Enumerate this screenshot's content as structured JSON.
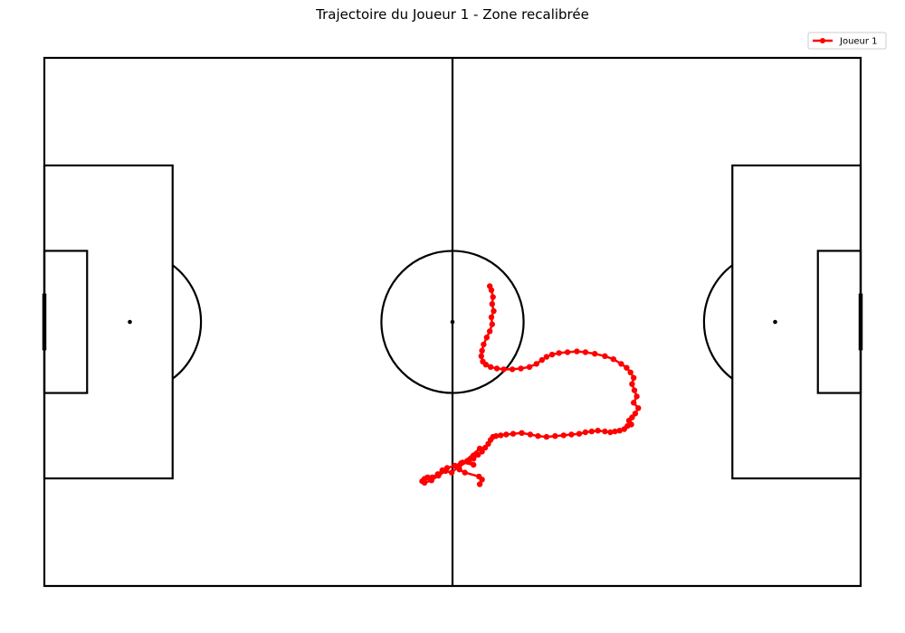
{
  "chart_data": {
    "type": "line",
    "title": "Trajectoire du Joueur 1 - Zone recalibrée",
    "xlabel": "",
    "ylabel": "",
    "xlim": [
      0,
      105
    ],
    "ylim": [
      0,
      68
    ],
    "grid": false,
    "axes_visible": false,
    "legend": {
      "position": "top-right",
      "entries": [
        "Joueur 1"
      ]
    },
    "background": "pitch-outline",
    "series": [
      {
        "name": "Joueur 1",
        "color": "#ff0000",
        "marker": "circle",
        "x": [
          57.3,
          57.5,
          57.7,
          57.6,
          57.8,
          57.5,
          57.6,
          57.3,
          56.9,
          56.5,
          56.3,
          56.2,
          56.4,
          56.8,
          57.4,
          58.2,
          59.1,
          60.2,
          61.3,
          62.4,
          63.3,
          64.0,
          64.6,
          65.3,
          66.2,
          67.3,
          68.5,
          69.6,
          70.8,
          72.1,
          73.2,
          74.2,
          74.9,
          75.4,
          75.8,
          75.6,
          75.9,
          76.2,
          75.8,
          76.4,
          76.0,
          75.6,
          75.2,
          75.5,
          75.0,
          74.6,
          74.0,
          73.4,
          72.8,
          72.1,
          71.2,
          70.4,
          69.6,
          68.8,
          67.8,
          66.8,
          65.7,
          64.6,
          63.5,
          62.5,
          61.4,
          60.3,
          59.4,
          58.7,
          58.1,
          57.7,
          57.4,
          57.1,
          56.7,
          56.3,
          55.8,
          55.2,
          54.4,
          53.6,
          52.8,
          51.8,
          51.2,
          50.6,
          49.9,
          49.3,
          48.9,
          48.6,
          48.9,
          49.8,
          50.7,
          51.6,
          52.4,
          56.0,
          55.2,
          54.6,
          55.2,
          53.8,
          53.4,
          54.1,
          55.9,
          56.3,
          56.0
        ],
        "y": [
          38.6,
          38.1,
          37.2,
          36.3,
          35.4,
          34.6,
          33.7,
          32.8,
          32.0,
          31.1,
          30.3,
          29.6,
          28.9,
          28.5,
          28.2,
          28.0,
          27.9,
          27.9,
          28.0,
          28.2,
          28.6,
          29.1,
          29.5,
          29.8,
          30.0,
          30.1,
          30.2,
          30.1,
          29.9,
          29.6,
          29.2,
          28.6,
          28.1,
          27.5,
          26.8,
          26.0,
          25.2,
          24.4,
          23.6,
          22.9,
          22.2,
          21.7,
          21.3,
          20.8,
          20.6,
          20.2,
          20.0,
          19.9,
          19.8,
          19.9,
          20.0,
          19.9,
          19.8,
          19.6,
          19.5,
          19.4,
          19.3,
          19.2,
          19.3,
          19.5,
          19.7,
          19.6,
          19.5,
          19.4,
          19.3,
          19.2,
          18.8,
          18.3,
          17.8,
          17.3,
          16.9,
          16.4,
          16.1,
          15.8,
          15.5,
          15.2,
          14.9,
          14.4,
          14.0,
          14.0,
          13.8,
          13.5,
          13.3,
          13.6,
          14.2,
          14.8,
          14.6,
          17.7,
          16.8,
          16.2,
          15.6,
          15.9,
          15.0,
          14.6,
          14.1,
          13.7,
          13.1
        ]
      }
    ],
    "pitch": {
      "length": 105,
      "width": 68,
      "penalty_area_depth": 16.5,
      "penalty_area_width": 40.3,
      "goal_area_depth": 5.5,
      "goal_area_width": 18.3,
      "centre_circle_radius": 9.15,
      "penalty_spot_distance": 11,
      "goal_width": 7.32
    }
  }
}
